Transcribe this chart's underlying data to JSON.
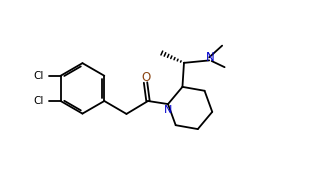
{
  "background_color": "#ffffff",
  "line_color": "#000000",
  "nitrogen_color": "#0000cd",
  "oxygen_color": "#8B4513",
  "figsize": [
    3.28,
    1.86
  ],
  "dpi": 100,
  "xlim": [
    0,
    10
  ],
  "ylim": [
    0,
    6
  ]
}
